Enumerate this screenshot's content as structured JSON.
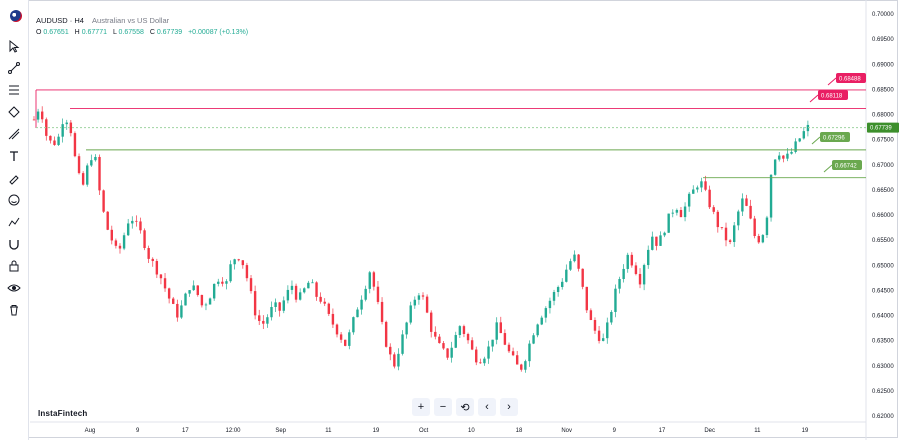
{
  "symbol": {
    "title": "AUDUSD · H4",
    "name": "Australian vs US Dollar",
    "ohlc": {
      "o_label": "O",
      "o": "0.67651",
      "h_label": "H",
      "h": "0.67771",
      "l_label": "L",
      "l": "0.67558",
      "c_label": "C",
      "c": "0.67739",
      "change": "+0.00087 (+0.13%)"
    }
  },
  "brand": "InstaFintech",
  "nav_buttons": [
    "+",
    "−",
    "⟲",
    "‹",
    "›"
  ],
  "toolbar_icons": [
    "cursor-icon",
    "trend-line-icon",
    "fibonacci-icon",
    "pattern-icon",
    "projection-icon",
    "text-icon",
    "brush-icon",
    "emoji-icon",
    "measure-icon",
    "magnet-icon",
    "lock-icon",
    "eye-icon",
    "trash-icon"
  ],
  "colors": {
    "up": "#22ab94",
    "down": "#f23645",
    "resistance": "#e91e63",
    "support": "#6aa84f",
    "current": "#3d8f2c"
  },
  "chart_data": {
    "type": "candlestick",
    "price_axis": [
      "0.70000",
      "0.69500",
      "0.69000",
      "0.68500",
      "0.68000",
      "0.67500",
      "0.67000",
      "0.66500",
      "0.66000",
      "0.65500",
      "0.65000",
      "0.64500",
      "0.64000",
      "0.63500",
      "0.63000",
      "0.62500",
      "0.62000"
    ],
    "time_axis": [
      "Aug",
      "9",
      "17",
      "12:00",
      "Sep",
      "11",
      "19",
      "Oct",
      "10",
      "18",
      "Nov",
      "9",
      "17",
      "Dec",
      "11",
      "19"
    ],
    "ylim": [
      0.62,
      0.7
    ],
    "levels": [
      {
        "label": "0.68488",
        "value": 0.68488,
        "kind": "resistance"
      },
      {
        "label": "0.68118",
        "value": 0.68118,
        "kind": "resistance"
      },
      {
        "label": "0.67739",
        "value": 0.67739,
        "kind": "current"
      },
      {
        "label": "0.67296",
        "value": 0.67296,
        "kind": "support"
      },
      {
        "label": "0.66742",
        "value": 0.66742,
        "kind": "support"
      }
    ],
    "path": [
      0.679,
      0.682,
      0.676,
      0.674,
      0.675,
      0.68,
      0.678,
      0.67,
      0.665,
      0.67,
      0.673,
      0.664,
      0.658,
      0.655,
      0.652,
      0.656,
      0.66,
      0.658,
      0.656,
      0.652,
      0.65,
      0.648,
      0.645,
      0.642,
      0.64,
      0.643,
      0.646,
      0.645,
      0.642,
      0.643,
      0.646,
      0.648,
      0.646,
      0.651,
      0.652,
      0.65,
      0.645,
      0.64,
      0.638,
      0.64,
      0.642,
      0.641,
      0.644,
      0.646,
      0.643,
      0.645,
      0.647,
      0.644,
      0.643,
      0.64,
      0.638,
      0.636,
      0.634,
      0.638,
      0.642,
      0.645,
      0.649,
      0.644,
      0.638,
      0.633,
      0.63,
      0.634,
      0.638,
      0.642,
      0.645,
      0.643,
      0.638,
      0.635,
      0.633,
      0.632,
      0.635,
      0.638,
      0.636,
      0.633,
      0.631,
      0.632,
      0.634,
      0.638,
      0.636,
      0.633,
      0.631,
      0.629,
      0.632,
      0.636,
      0.639,
      0.641,
      0.643,
      0.645,
      0.647,
      0.65,
      0.652,
      0.648,
      0.642,
      0.638,
      0.636,
      0.635,
      0.64,
      0.645,
      0.649,
      0.652,
      0.65,
      0.647,
      0.652,
      0.656,
      0.654,
      0.657,
      0.66,
      0.662,
      0.66,
      0.663,
      0.665,
      0.667,
      0.664,
      0.661,
      0.658,
      0.656,
      0.654,
      0.659,
      0.663,
      0.661,
      0.656,
      0.655,
      0.658,
      0.67,
      0.673,
      0.671,
      0.672,
      0.674,
      0.676,
      0.6774
    ]
  }
}
